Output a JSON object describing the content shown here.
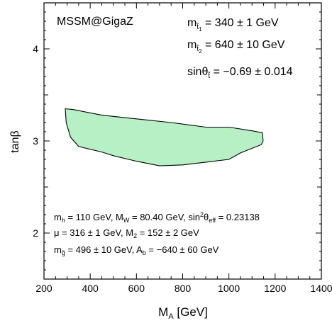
{
  "chart_data": {
    "type": "area",
    "xlabel": "M",
    "xlabel_sub": "A",
    "xlabel_unit": "[GeV]",
    "ylabel": "tanβ",
    "xlim": [
      200,
      1400
    ],
    "ylim": [
      1.5,
      4.5
    ],
    "x_ticks": [
      200,
      400,
      600,
      800,
      1000,
      1200,
      1400
    ],
    "y_ticks": [
      2,
      3,
      4
    ],
    "grid": false,
    "series": [
      {
        "fill_color": "#b7f0c4",
        "edge_color": "#000000",
        "points": [
          [
            292,
            3.35
          ],
          [
            330,
            3.34
          ],
          [
            450,
            3.28
          ],
          [
            600,
            3.24
          ],
          [
            750,
            3.2
          ],
          [
            900,
            3.15
          ],
          [
            1000,
            3.15
          ],
          [
            1100,
            3.11
          ],
          [
            1145,
            3.09
          ],
          [
            1148,
            3.0
          ],
          [
            1140,
            2.96
          ],
          [
            1050,
            2.87
          ],
          [
            1000,
            2.8
          ],
          [
            900,
            2.77
          ],
          [
            800,
            2.74
          ],
          [
            700,
            2.73
          ],
          [
            600,
            2.78
          ],
          [
            500,
            2.84
          ],
          [
            450,
            2.88
          ],
          [
            350,
            2.94
          ],
          [
            315,
            3.04
          ],
          [
            296,
            3.2
          ]
        ]
      }
    ],
    "annotations": {
      "title_tag": "MSSM@GigaZ",
      "m_st1": {
        "m": "m",
        "sub": "t̃",
        "subsub": "1",
        "rest": " = 340 ± 1 GeV"
      },
      "m_st2": {
        "m": "m",
        "sub": "t̃",
        "subsub": "2",
        "rest": " = 640 ± 10 GeV"
      },
      "sin_theta": {
        "main": "sinθ",
        "sub": "t̃",
        "rest": " = −0.69 ± 0.014"
      },
      "line1": {
        "a": "m",
        "a_sub": "h",
        "b": " = 110 GeV, M",
        "b_sub": "W",
        "c": " = 80.40 GeV, sin",
        "c_sup": "2",
        "d": "θ",
        "d_sub": "eff",
        "e": " = 0.23138"
      },
      "line2": {
        "a": "μ = 316 ± 1 GeV, M",
        "a_sub": "2",
        "b": " = 152 ± 2 GeV"
      },
      "line3": {
        "a": "m",
        "a_sub": "g̃",
        "b": " = 496 ± 10 GeV, A",
        "b_sub": "b",
        "c": " = −640 ± 60 GeV"
      }
    }
  }
}
